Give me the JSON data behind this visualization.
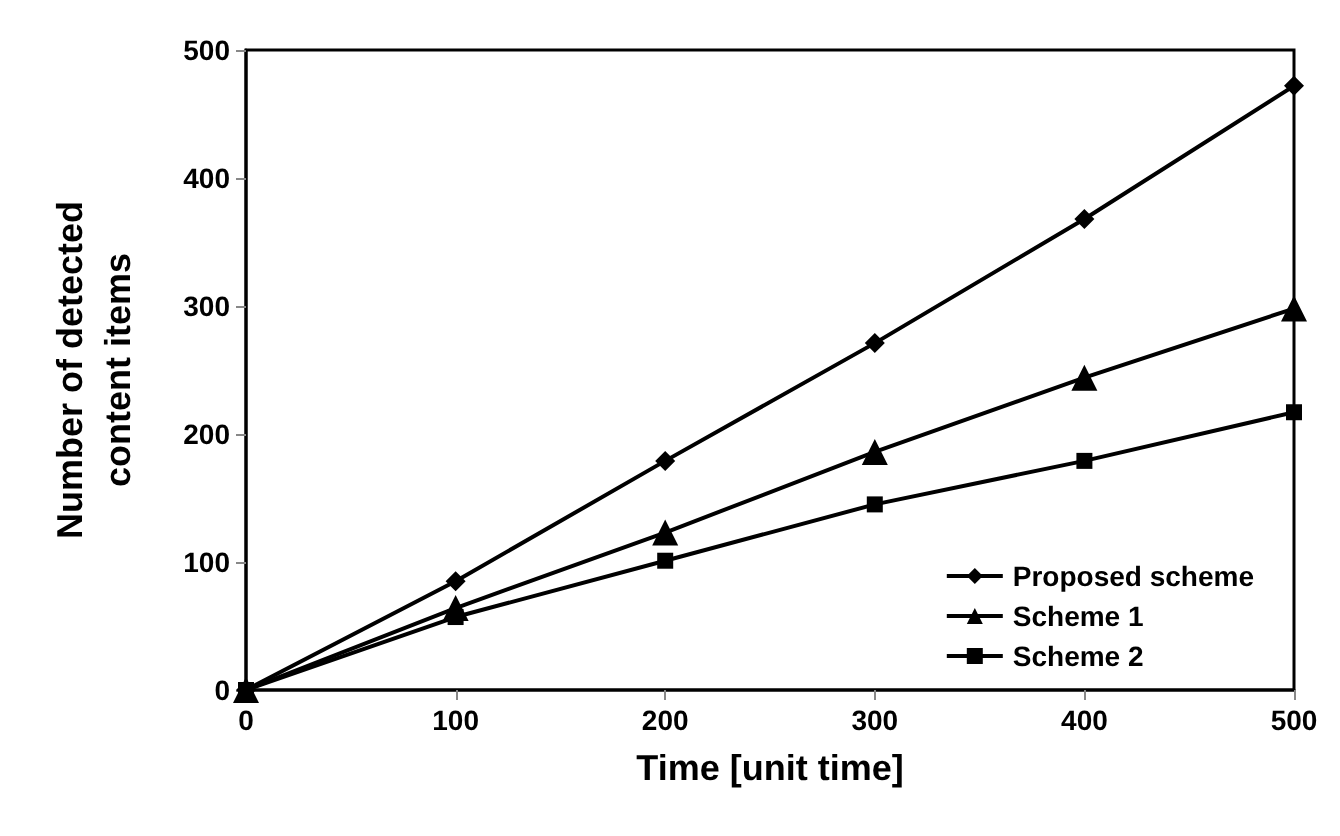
{
  "chart_data": {
    "type": "line",
    "xlabel": "Time [unit time]",
    "ylabel": "Number of detected\ncontent items",
    "x": [
      0,
      100,
      200,
      300,
      400,
      500
    ],
    "series": [
      {
        "name": "Proposed scheme",
        "color": "#000000",
        "marker": "diamond",
        "values": [
          0,
          85,
          179,
          271,
          368,
          472
        ]
      },
      {
        "name": "Scheme 1",
        "color": "#000000",
        "marker": "triangle",
        "values": [
          0,
          64,
          123,
          186,
          244,
          298
        ]
      },
      {
        "name": "Scheme 2",
        "color": "#000000",
        "marker": "square",
        "values": [
          0,
          57,
          101,
          145,
          179,
          217
        ]
      }
    ],
    "xlim": [
      0,
      500
    ],
    "xticks": [
      0,
      100,
      200,
      300,
      400,
      500
    ],
    "ylim": [
      0,
      500
    ],
    "yticks": [
      0,
      100,
      200,
      300,
      400,
      500
    ],
    "grid": false,
    "legend": "bottom right",
    "line_style": "solid"
  }
}
